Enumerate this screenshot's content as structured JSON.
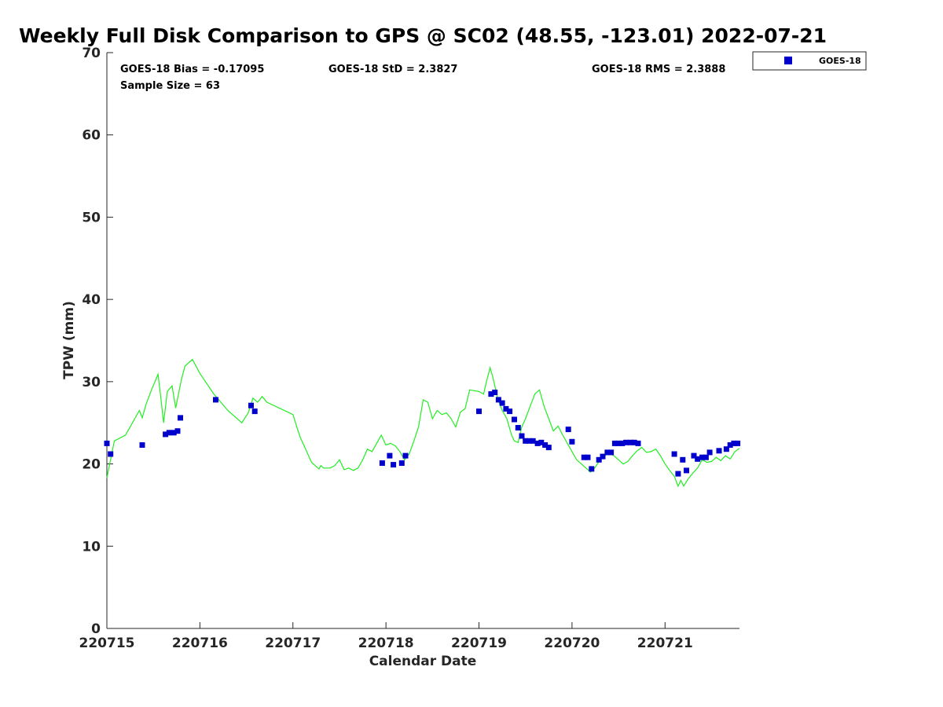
{
  "chart_data": {
    "type": "scatter",
    "title": "Weekly Full Disk Comparison to GPS @ SC02 (48.55, -123.01) 2022-07-21",
    "xlabel": "Calendar Date",
    "ylabel": "TPW (mm)",
    "xlim": [
      0,
      6.8
    ],
    "ylim": [
      0,
      70
    ],
    "x_ticks": [
      0,
      1,
      2,
      3,
      4,
      5,
      6
    ],
    "x_tick_labels": [
      "220715",
      "220716",
      "220717",
      "220718",
      "220719",
      "220720",
      "220721"
    ],
    "y_ticks": [
      0,
      10,
      20,
      30,
      40,
      50,
      60,
      70
    ],
    "y_tick_labels": [
      "0",
      "10",
      "20",
      "30",
      "40",
      "50",
      "60",
      "70"
    ],
    "grid": false,
    "legend_position": "top-right",
    "stats": {
      "bias": "GOES-18 Bias = -0.17095",
      "std": "GOES-18 StD = 2.3827",
      "rms": "GOES-18 RMS = 2.3888",
      "sample": "Sample Size = 63"
    },
    "series": [
      {
        "name": "GOES-18",
        "type": "scatter",
        "color": "#0000cc",
        "x": [
          0.0,
          0.04,
          0.38,
          0.63,
          0.67,
          0.72,
          0.76,
          0.79,
          1.17,
          1.55,
          1.59,
          2.96,
          3.04,
          3.08,
          3.17,
          3.21,
          4.0,
          4.13,
          4.17,
          4.21,
          4.25,
          4.29,
          4.33,
          4.38,
          4.42,
          4.46,
          4.5,
          4.54,
          4.58,
          4.63,
          4.67,
          4.71,
          4.75,
          4.96,
          5.0,
          5.13,
          5.17,
          5.21,
          5.29,
          5.33,
          5.38,
          5.42,
          5.46,
          5.5,
          5.54,
          5.58,
          5.63,
          5.67,
          5.71,
          6.1,
          6.14,
          6.19,
          6.23,
          6.31,
          6.35,
          6.4,
          6.44,
          6.48,
          6.58,
          6.66,
          6.7,
          6.74,
          6.78
        ],
        "y": [
          22.5,
          21.2,
          22.3,
          23.6,
          23.8,
          23.8,
          24.0,
          25.6,
          27.8,
          27.1,
          26.4,
          20.1,
          21.0,
          19.9,
          20.1,
          21.0,
          26.4,
          28.5,
          28.7,
          27.8,
          27.4,
          26.7,
          26.4,
          25.4,
          24.4,
          23.4,
          22.8,
          22.8,
          22.8,
          22.5,
          22.6,
          22.3,
          22.0,
          24.2,
          22.7,
          20.8,
          20.8,
          19.4,
          20.5,
          20.9,
          21.4,
          21.4,
          22.5,
          22.5,
          22.5,
          22.6,
          22.6,
          22.6,
          22.5,
          21.2,
          18.8,
          20.5,
          19.2,
          21.0,
          20.6,
          20.8,
          20.8,
          21.4,
          21.6,
          21.8,
          22.3,
          22.5,
          22.5
        ]
      },
      {
        "type": "line",
        "color": "#22ee22",
        "x": [
          0.0,
          0.03,
          0.08,
          0.2,
          0.35,
          0.38,
          0.42,
          0.48,
          0.55,
          0.58,
          0.61,
          0.65,
          0.7,
          0.74,
          0.8,
          0.84,
          0.92,
          1.0,
          1.15,
          1.3,
          1.45,
          1.52,
          1.57,
          1.62,
          1.67,
          1.72,
          2.0,
          2.05,
          2.08,
          2.12,
          2.2,
          2.28,
          2.3,
          2.33,
          2.4,
          2.45,
          2.5,
          2.55,
          2.6,
          2.65,
          2.7,
          2.75,
          2.8,
          2.85,
          2.9,
          2.95,
          3.0,
          3.05,
          3.1,
          3.15,
          3.2,
          3.25,
          3.3,
          3.35,
          3.4,
          3.45,
          3.5,
          3.55,
          3.6,
          3.65,
          3.7,
          3.75,
          3.8,
          3.85,
          3.9,
          4.0,
          4.05,
          4.08,
          4.12,
          4.15,
          4.2,
          4.25,
          4.3,
          4.35,
          4.38,
          4.42,
          4.46,
          4.5,
          4.55,
          4.6,
          4.65,
          4.7,
          4.75,
          4.8,
          4.85,
          4.9,
          4.95,
          5.0,
          5.05,
          5.1,
          5.15,
          5.2,
          5.25,
          5.3,
          5.35,
          5.4,
          5.45,
          5.5,
          5.55,
          5.6,
          5.65,
          5.7,
          5.75,
          5.8,
          5.85,
          5.9,
          5.95,
          6.0,
          6.05,
          6.1,
          6.14,
          6.17,
          6.2,
          6.25,
          6.3,
          6.35,
          6.4,
          6.45,
          6.5,
          6.55,
          6.6,
          6.65,
          6.7,
          6.75,
          6.8
        ],
        "y": [
          18.3,
          20.0,
          22.8,
          23.5,
          26.5,
          25.6,
          27.2,
          29.0,
          30.9,
          28.0,
          25.0,
          28.8,
          29.5,
          26.8,
          30.2,
          31.9,
          32.7,
          31.0,
          28.5,
          26.5,
          25.0,
          26.2,
          28.0,
          27.5,
          28.2,
          27.5,
          26.0,
          24.2,
          23.2,
          22.2,
          20.2,
          19.4,
          19.8,
          19.5,
          19.5,
          19.8,
          20.5,
          19.3,
          19.5,
          19.2,
          19.5,
          20.5,
          21.8,
          21.5,
          22.5,
          23.5,
          22.3,
          22.5,
          22.2,
          21.5,
          20.5,
          21.2,
          22.8,
          24.5,
          27.8,
          27.5,
          25.5,
          26.5,
          26.0,
          26.2,
          25.5,
          24.5,
          26.3,
          26.7,
          29.0,
          28.8,
          28.5,
          30.0,
          31.7,
          30.5,
          28.0,
          26.5,
          25.5,
          23.5,
          22.8,
          22.6,
          24.5,
          25.5,
          27.0,
          28.5,
          29.0,
          27.0,
          25.5,
          24.0,
          24.6,
          23.5,
          22.5,
          21.5,
          20.5,
          20.0,
          19.5,
          19.0,
          19.6,
          20.5,
          21.0,
          21.3,
          21.0,
          20.5,
          20.0,
          20.3,
          21.0,
          21.6,
          22.0,
          21.4,
          21.5,
          21.8,
          21.0,
          20.0,
          19.2,
          18.5,
          17.3,
          18.0,
          17.3,
          18.2,
          18.9,
          19.5,
          20.5,
          20.2,
          20.3,
          20.8,
          20.4,
          21.0,
          20.6,
          21.5,
          21.9
        ]
      }
    ]
  }
}
